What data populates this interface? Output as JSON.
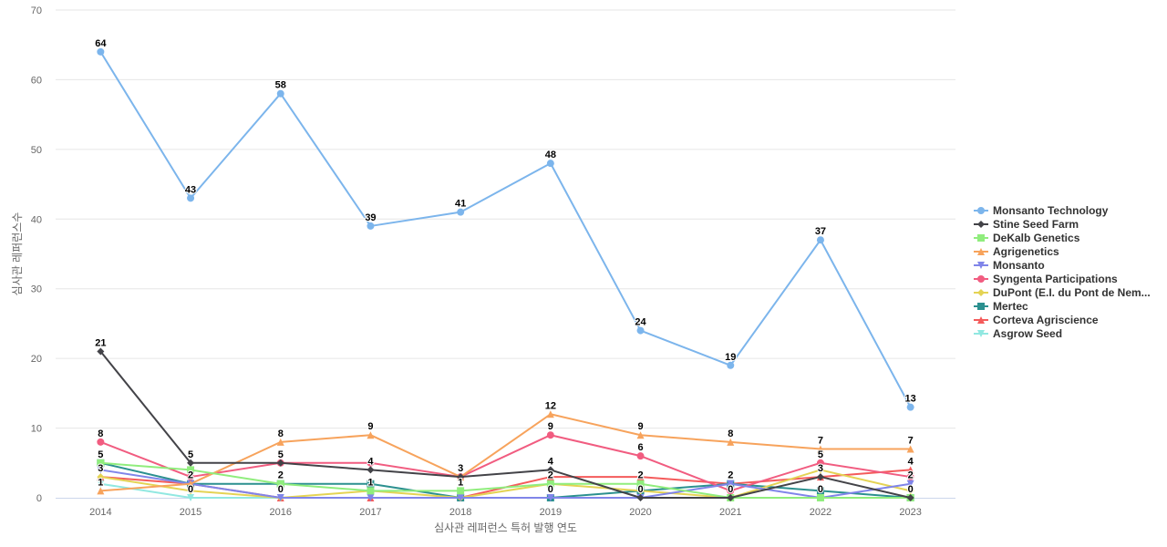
{
  "chart_data": {
    "type": "line",
    "title": "",
    "xlabel": "심사관 레퍼런스 특허 발행 연도",
    "ylabel": "심사관 레퍼런스수",
    "x": [
      "2014",
      "2015",
      "2016",
      "2017",
      "2018",
      "2019",
      "2020",
      "2021",
      "2022",
      "2023"
    ],
    "ylim": [
      0,
      70
    ],
    "yticks": [
      0,
      10,
      20,
      30,
      40,
      50,
      60,
      70
    ],
    "grid": true,
    "legend_position": "right",
    "series": [
      {
        "name": "Monsanto Technology",
        "color": "#7cb5ec",
        "marker": "circle",
        "labels": true,
        "values": [
          64,
          43,
          58,
          39,
          41,
          48,
          24,
          19,
          37,
          13
        ]
      },
      {
        "name": "Stine Seed Farm",
        "color": "#434348",
        "marker": "diamond",
        "labels": true,
        "values": [
          21,
          5,
          5,
          4,
          3,
          4,
          0,
          0,
          3,
          0
        ]
      },
      {
        "name": "DeKalb Genetics",
        "color": "#90ed7d",
        "marker": "square",
        "labels": false,
        "values": [
          5,
          4,
          2,
          1,
          1,
          2,
          2,
          0,
          0,
          0
        ]
      },
      {
        "name": "Agrigenetics",
        "color": "#f7a35c",
        "marker": "triangle",
        "labels": true,
        "values": [
          1,
          2,
          8,
          9,
          3,
          12,
          9,
          8,
          7,
          7
        ]
      },
      {
        "name": "Monsanto",
        "color": "#8085e9",
        "marker": "triangle-down",
        "labels": false,
        "values": [
          4,
          2,
          0,
          0,
          0,
          0,
          0,
          2,
          0,
          2
        ]
      },
      {
        "name": "Syngenta Participations",
        "color": "#f15c80",
        "marker": "circle",
        "labels": true,
        "values": [
          8,
          3,
          5,
          5,
          3,
          9,
          6,
          1,
          5,
          3
        ]
      },
      {
        "name": "DuPont (E.I. du Pont de Nem...",
        "color": "#e4d354",
        "marker": "diamond",
        "labels": false,
        "values": [
          3,
          1,
          0,
          1,
          0,
          2,
          1,
          0,
          4,
          1
        ]
      },
      {
        "name": "Mertec",
        "color": "#2b908f",
        "marker": "square",
        "labels": false,
        "values": [
          5,
          2,
          2,
          2,
          0,
          0,
          1,
          2,
          1,
          0
        ]
      },
      {
        "name": "Corteva Agriscience",
        "color": "#f45b5b",
        "marker": "triangle",
        "labels": true,
        "values": [
          3,
          2,
          0,
          0,
          0,
          3,
          3,
          2,
          3,
          4
        ]
      },
      {
        "name": "Asgrow Seed",
        "color": "#91e8e1",
        "marker": "triangle-down",
        "labels": false,
        "values": [
          2,
          0,
          0,
          0,
          0,
          0,
          0,
          0,
          0,
          0
        ]
      }
    ],
    "data_labels": [
      {
        "x": "2014",
        "y": 64,
        "text": "64"
      },
      {
        "x": "2015",
        "y": 43,
        "text": "43"
      },
      {
        "x": "2016",
        "y": 58,
        "text": "58"
      },
      {
        "x": "2017",
        "y": 39,
        "text": "39"
      },
      {
        "x": "2018",
        "y": 41,
        "text": "41"
      },
      {
        "x": "2019",
        "y": 48,
        "text": "48"
      },
      {
        "x": "2020",
        "y": 24,
        "text": "24"
      },
      {
        "x": "2021",
        "y": 19,
        "text": "19"
      },
      {
        "x": "2022",
        "y": 37,
        "text": "37"
      },
      {
        "x": "2023",
        "y": 13,
        "text": "13"
      },
      {
        "x": "2014",
        "y": 21,
        "text": "21"
      },
      {
        "x": "2015",
        "y": 5,
        "text": "5"
      },
      {
        "x": "2016",
        "y": 5,
        "text": "5"
      },
      {
        "x": "2017",
        "y": 4,
        "text": "4"
      },
      {
        "x": "2018",
        "y": 3,
        "text": "3"
      },
      {
        "x": "2019",
        "y": 4,
        "text": "4"
      },
      {
        "x": "2014",
        "y": 8,
        "text": "8"
      },
      {
        "x": "2016",
        "y": 8,
        "text": "8"
      },
      {
        "x": "2017",
        "y": 9,
        "text": "9"
      },
      {
        "x": "2019",
        "y": 12,
        "text": "12"
      },
      {
        "x": "2020",
        "y": 9,
        "text": "9"
      },
      {
        "x": "2021",
        "y": 8,
        "text": "8"
      },
      {
        "x": "2022",
        "y": 7,
        "text": "7"
      },
      {
        "x": "2023",
        "y": 7,
        "text": "7"
      },
      {
        "x": "2019",
        "y": 9,
        "text": "9"
      },
      {
        "x": "2020",
        "y": 6,
        "text": "6"
      },
      {
        "x": "2022",
        "y": 5,
        "text": "5"
      },
      {
        "x": "2023",
        "y": 4,
        "text": "4"
      },
      {
        "x": "2014",
        "y": 5,
        "text": "5"
      },
      {
        "x": "2014",
        "y": 3,
        "text": "3"
      },
      {
        "x": "2014",
        "y": 1,
        "text": "1"
      },
      {
        "x": "2015",
        "y": 2,
        "text": "2"
      },
      {
        "x": "2015",
        "y": 0,
        "text": "0"
      },
      {
        "x": "2016",
        "y": 2,
        "text": "2"
      },
      {
        "x": "2016",
        "y": 0,
        "text": "0"
      },
      {
        "x": "2017",
        "y": 1,
        "text": "1"
      },
      {
        "x": "2018",
        "y": 1,
        "text": "1"
      },
      {
        "x": "2019",
        "y": 2,
        "text": "2"
      },
      {
        "x": "2019",
        "y": 0,
        "text": "0"
      },
      {
        "x": "2020",
        "y": 2,
        "text": "2"
      },
      {
        "x": "2020",
        "y": 0,
        "text": "0"
      },
      {
        "x": "2021",
        "y": 2,
        "text": "2"
      },
      {
        "x": "2021",
        "y": 0,
        "text": "0"
      },
      {
        "x": "2022",
        "y": 3,
        "text": "3"
      },
      {
        "x": "2022",
        "y": 0,
        "text": "0"
      },
      {
        "x": "2023",
        "y": 2,
        "text": "2"
      },
      {
        "x": "2023",
        "y": 0,
        "text": "0"
      }
    ]
  }
}
